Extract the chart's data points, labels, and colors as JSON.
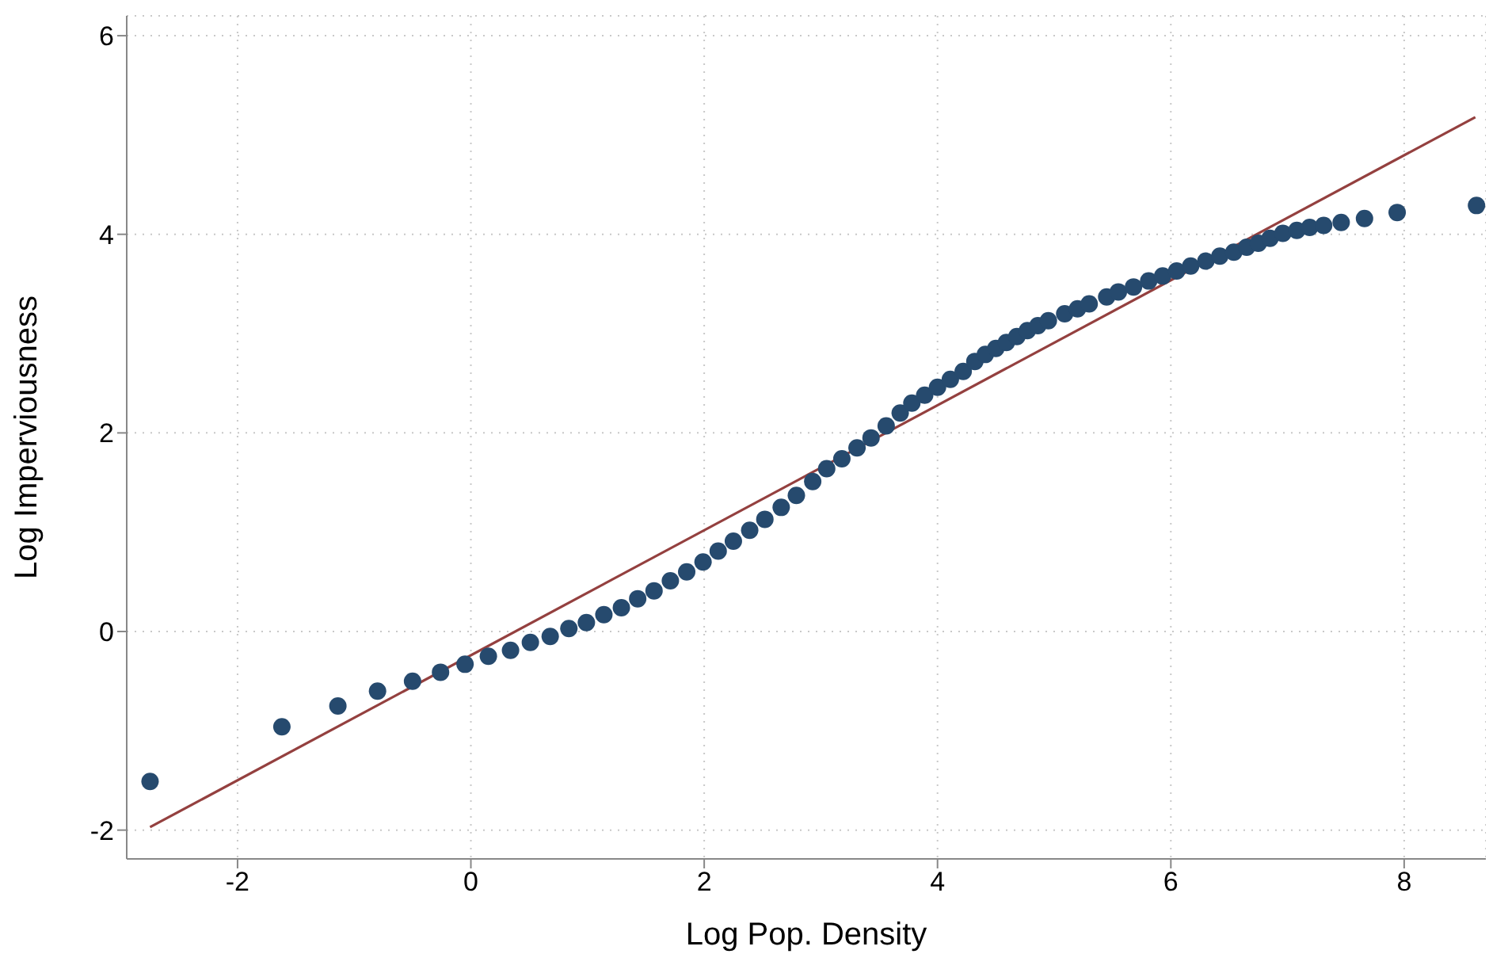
{
  "chart_data": {
    "type": "scatter",
    "xlabel": "Log Pop. Density",
    "ylabel": "Log Imperviousness",
    "xlim": [
      -2.95,
      8.7
    ],
    "xticks": [
      -2,
      0,
      2,
      4,
      6,
      8
    ],
    "ylim": [
      -2.29,
      6.2
    ],
    "yticks": [
      -2,
      0,
      2,
      4,
      6
    ],
    "grid": true,
    "marker": "circle",
    "series": [
      {
        "color": "#264a6e",
        "x": [
          -2.75,
          -1.62,
          -1.14,
          -0.8,
          -0.5,
          -0.26,
          -0.05,
          0.15,
          0.34,
          0.51,
          0.68,
          0.84,
          0.99,
          1.14,
          1.29,
          1.43,
          1.57,
          1.71,
          1.85,
          1.99,
          2.12,
          2.25,
          2.39,
          2.52,
          2.66,
          2.79,
          2.93,
          3.05,
          3.18,
          3.31,
          3.43,
          3.56,
          3.68,
          3.78,
          3.89,
          4.0,
          4.11,
          4.22,
          4.32,
          4.41,
          4.5,
          4.59,
          4.68,
          4.77,
          4.86,
          4.95,
          5.09,
          5.2,
          5.3,
          5.45,
          5.55,
          5.68,
          5.81,
          5.93,
          6.05,
          6.17,
          6.3,
          6.42,
          6.54,
          6.65,
          6.75,
          6.85,
          6.96,
          7.08,
          7.19,
          7.31,
          7.46,
          7.66,
          7.94,
          8.62
        ],
        "values": [
          -1.51,
          -0.96,
          -0.75,
          -0.6,
          -0.5,
          -0.41,
          -0.33,
          -0.25,
          -0.19,
          -0.11,
          -0.05,
          0.03,
          0.09,
          0.17,
          0.24,
          0.33,
          0.41,
          0.51,
          0.6,
          0.7,
          0.81,
          0.91,
          1.02,
          1.13,
          1.25,
          1.37,
          1.51,
          1.64,
          1.74,
          1.85,
          1.95,
          2.07,
          2.2,
          2.3,
          2.38,
          2.46,
          2.54,
          2.62,
          2.72,
          2.79,
          2.85,
          2.91,
          2.97,
          3.03,
          3.08,
          3.13,
          3.2,
          3.25,
          3.3,
          3.37,
          3.42,
          3.47,
          3.53,
          3.58,
          3.63,
          3.68,
          3.73,
          3.78,
          3.82,
          3.87,
          3.91,
          3.96,
          4.01,
          4.04,
          4.07,
          4.09,
          4.12,
          4.16,
          4.22,
          4.29
        ]
      },
      {
        "type": "line",
        "color": "#94403f",
        "line_style": "solid",
        "marker": "none",
        "x": [
          -2.75,
          8.61
        ],
        "values": [
          -1.97,
          5.18
        ]
      }
    ]
  }
}
